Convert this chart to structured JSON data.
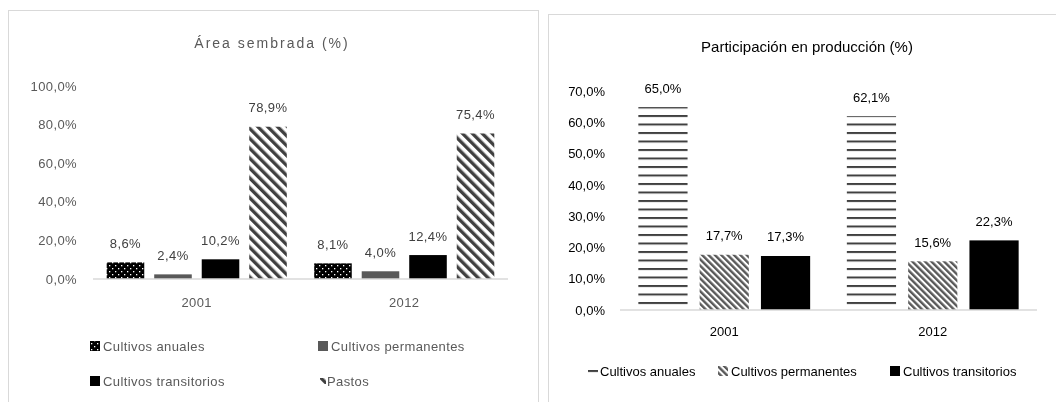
{
  "chart_data": [
    {
      "type": "bar",
      "title": "Área sembrada (%)",
      "categories": [
        "2001",
        "2012"
      ],
      "series": [
        {
          "name": "Cultivos anuales",
          "color": "#000000",
          "values": [
            8.6,
            8.1
          ],
          "value_labels": [
            "8,6%",
            "8,1%"
          ]
        },
        {
          "name": "Cultivos permanentes",
          "color": "#595959",
          "values": [
            2.4,
            4.0
          ],
          "value_labels": [
            "2,4%",
            "4,0%"
          ]
        },
        {
          "name": "Cultivos transitorios",
          "color": "#000000",
          "values": [
            10.2,
            12.4
          ],
          "value_labels": [
            "10,2%",
            "12,4%"
          ]
        },
        {
          "name": "Pastos",
          "color": "#404040",
          "values": [
            78.9,
            75.4
          ],
          "value_labels": [
            "78,9%",
            "75,4%"
          ]
        }
      ],
      "ylim": [
        0,
        100
      ],
      "yticks": [
        {
          "value": 0,
          "label": "0,0%"
        },
        {
          "value": 20,
          "label": "20,0%"
        },
        {
          "value": 40,
          "label": "40,0%"
        },
        {
          "value": 60,
          "label": "60,0%"
        },
        {
          "value": 80,
          "label": "80,0%"
        },
        {
          "value": 100,
          "label": "100,0%"
        }
      ],
      "legend": "bottom"
    },
    {
      "type": "bar",
      "title": "Participación en producción (%)",
      "categories": [
        "2001",
        "2012"
      ],
      "series": [
        {
          "name": "Cultivos anuales",
          "color": "#404040",
          "values": [
            65.0,
            62.1
          ],
          "value_labels": [
            "65,0%",
            "62,1%"
          ]
        },
        {
          "name": "Cultivos permanentes",
          "color": "#595959",
          "values": [
            17.7,
            15.6
          ],
          "value_labels": [
            "17,7%",
            "15,6%"
          ]
        },
        {
          "name": "Cultivos transitorios",
          "color": "#000000",
          "values": [
            17.3,
            22.3
          ],
          "value_labels": [
            "17,3%",
            "22,3%"
          ]
        }
      ],
      "ylim": [
        0,
        70
      ],
      "yticks": [
        {
          "value": 0,
          "label": "0,0%"
        },
        {
          "value": 10,
          "label": "10,0%"
        },
        {
          "value": 20,
          "label": "20,0%"
        },
        {
          "value": 30,
          "label": "30,0%"
        },
        {
          "value": 40,
          "label": "40,0%"
        },
        {
          "value": 50,
          "label": "50,0%"
        },
        {
          "value": 60,
          "label": "60,0%"
        },
        {
          "value": 70,
          "label": "70,0%"
        }
      ],
      "legend": "bottom"
    }
  ]
}
